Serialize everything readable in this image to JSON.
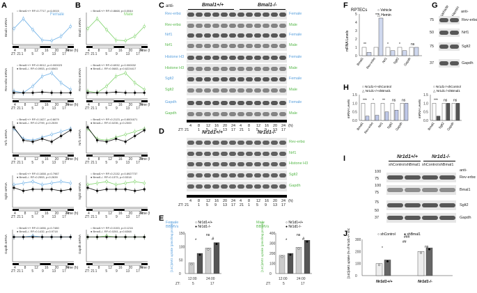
{
  "panels": {
    "A": {
      "label": "A",
      "sex": "Female",
      "wt": "Bmal1+/+",
      "ko": "Bmal1-/-",
      "rows": [
        {
          "ylabel": "Bmal1 mRNA",
          "stats1": "RF=0.7717, p=0.0015",
          "stats2": "",
          "wt": [
            1.2,
            2.1,
            1.1,
            0.15,
            0.1,
            0.5,
            1.4
          ],
          "ko": []
        },
        {
          "ylabel": "Rev-erbα mRNA",
          "stats1": "RF=0.9012, p=0.000023",
          "stats2": "RF=0.0953, p=0.6563",
          "wt": [
            0.15,
            0.1,
            0.3,
            0.6,
            0.7,
            0.4,
            0.2
          ],
          "ko": [
            0.1,
            0.1,
            0.1,
            0.12,
            0.1,
            0.1,
            0.1
          ]
        },
        {
          "ylabel": "Nrf1 mRNA",
          "stats1": "RF=0.1627, p=0.6679",
          "stats2": "RF=0.2799, p=0.2539",
          "wt": [
            1.5,
            0.8,
            0.7,
            0.9,
            1.1,
            1.3,
            1.5
          ],
          "ko": [
            1.6,
            0.7,
            0.6,
            0.8,
            0.6,
            1.0,
            1.4
          ]
        },
        {
          "ylabel": "Sglt2 mRNA",
          "stats1": "RF=0.1658, p=0.7987",
          "stats2": "RF=0.2553, p=0.2639",
          "wt": [
            1.3,
            1.4,
            1.5,
            1.3,
            1.4,
            1.5,
            1.4
          ],
          "ko": [
            1.1,
            0.9,
            1.0,
            1.0,
            1.0,
            0.9,
            1.0
          ]
        },
        {
          "ylabel": "Gapdh mRNA",
          "stats1": "RF=0.1656, p=0.7480",
          "stats2": "RF=0.1432, p=0.9718",
          "wt": [
            1.0,
            1.0,
            1.05,
            1.0,
            1.0,
            1.0,
            1.0
          ],
          "ko": [
            1.0,
            1.0,
            1.0,
            1.0,
            1.0,
            1.0,
            1.0
          ]
        }
      ]
    },
    "B": {
      "label": "B",
      "sex": "Male",
      "wt": "Bmal1+/+",
      "ko": "Bmal1-/-",
      "rows": [
        {
          "ylabel": "Bmal1 mRNA",
          "stats1": "RF=0.8668, p=0.0044",
          "stats2": ""
        },
        {
          "ylabel": "Rev-erbα mRNA",
          "stats1": "RF=0.6932, p=0.000032",
          "stats2": "RF=0.0683, p=0.6224417"
        },
        {
          "ylabel": "Nrf1 mRNA",
          "stats1": "RF=0.2123, p=0.8001671",
          "stats2": "RF=0.0235, p=0.2300"
        },
        {
          "ylabel": "Sglt2 mRNA",
          "stats1": "RF=0.2132, p=0.8927737",
          "stats2": "RF=0.1373, p=0.5318"
        },
        {
          "ylabel": "Gapdh mRNA",
          "stats1": "RF=0.0153, p=0.1216",
          "stats2": "RF=0.0261, p=0.6368"
        }
      ]
    },
    "time_axis": {
      "ticks": [
        "4",
        "8",
        "12",
        "16",
        "20",
        "24"
      ],
      "zt": [
        "ZT: 21",
        "1",
        "5",
        "9",
        "13",
        "17"
      ],
      "unit": "Time (h)"
    },
    "C": {
      "label": "C",
      "anti": "anti-",
      "geno1": "Bmal1+/+",
      "geno2": "Bmal1-/-",
      "bands": [
        {
          "name": "Rev-erbα",
          "sex": "Female"
        },
        {
          "name": "Rev-erbα",
          "sex": "Male"
        },
        {
          "name": "Nrf1",
          "sex": "Female"
        },
        {
          "name": "Nrf1",
          "sex": "Male"
        },
        {
          "name": "Histone H3",
          "sex": "Female"
        },
        {
          "name": "Histone H3",
          "sex": "Male"
        },
        {
          "name": "Sglt2",
          "sex": "Female"
        },
        {
          "name": "Sglt2",
          "sex": "Male"
        },
        {
          "name": "Gapdh",
          "sex": "Female"
        },
        {
          "name": "Gapdh",
          "sex": "Male"
        }
      ],
      "time": [
        "4",
        "8",
        "12",
        "16",
        "20",
        "24",
        "4",
        "8",
        "12",
        "16",
        "20",
        "24"
      ],
      "zt": [
        "ZT: 21",
        "1",
        "5",
        "9",
        "13",
        "17",
        "21",
        "1",
        "5",
        "9",
        "13",
        "17"
      ],
      "unit": "(h)"
    },
    "D": {
      "label": "D",
      "geno1": "Nr1d1+/+",
      "geno2": "Nr1d1-/-",
      "bands": [
        "Rev-erbα",
        "Nrf1",
        "Histone H3",
        "Sglt2",
        "Gapdh"
      ],
      "time": [
        "4",
        "8",
        "12",
        "16",
        "20",
        "24",
        "4",
        "8",
        "12",
        "16",
        "20",
        "24"
      ],
      "zt": [
        "ZT: 21",
        "1",
        "5",
        "9",
        "13",
        "17",
        "21",
        "1",
        "5",
        "9",
        "13",
        "17"
      ],
      "unit": "(h)"
    },
    "E": {
      "label": "E",
      "female": "Female",
      "male": "Male",
      "cells": "BBMVs",
      "wt": "Nr1d1+/+",
      "ko": "Nr1d1-/-",
      "ylabel": "[14C]αMG uptake (pmol/mg protein)",
      "x1": "12:00",
      "x2": "24:00",
      "zt1": "5",
      "zt2": "17",
      "ztprefix": "ZT:",
      "f_yticks": [
        "0",
        "50",
        "100",
        "150"
      ],
      "m_yticks": [
        "0",
        "100",
        "200",
        "300",
        "400"
      ],
      "sig1": "*",
      "sig2": "#",
      "sig3": "ns",
      "sig4": "**"
    },
    "F": {
      "label": "F",
      "title": "RPTECs",
      "vehicle": "Vehicle",
      "hemin": "Hemin",
      "ylabel": "mRNA Levels",
      "genes": [
        "Bmal1",
        "Rev-erbα",
        "Nrf1",
        "Sglt2",
        "Gapdh"
      ],
      "yticks": [
        "0",
        "1",
        "2",
        "3",
        "4",
        "5"
      ],
      "vehicle_vals": [
        1,
        1,
        1,
        1,
        1
      ],
      "hemin_vals": [
        0.4,
        4.5,
        0.6,
        0.6,
        1.0
      ],
      "sig": [
        "**",
        "***",
        "*",
        "*",
        "ns"
      ]
    },
    "G": {
      "label": "G",
      "lanes": [
        "Vehicle",
        "Hemin"
      ],
      "anti": "anti-",
      "bands": [
        "Rev-erbα",
        "Nrf1",
        "Sglt2",
        "Gapdh"
      ],
      "mw": [
        "75",
        "50",
        "75",
        "37"
      ]
    },
    "H": {
      "label": "H",
      "ylabel": "mRNA Levels",
      "left": {
        "a": "Nr1d1+/+shControl",
        "b": "Nr1d1+/+shBmal1",
        "genes": [
          "Bmal1",
          "Rev-erbα",
          "Nrf1",
          "Sglt2",
          "Gapdh"
        ],
        "yticks": [
          "0.0",
          "0.5",
          "1.0",
          "1.5"
        ],
        "sig": [
          "***",
          "*",
          "**",
          "ns",
          "ns"
        ]
      },
      "right": {
        "a": "Nr1d1-/-shControl",
        "b": "Nr1d1-/-shBmal1",
        "genes": [
          "Bmal1",
          "Sglt2",
          "Gapdh"
        ],
        "yticks": [
          "0.0",
          "0.5",
          "1.0",
          "1.5"
        ],
        "sig": [
          "***",
          "ns",
          "ns"
        ]
      }
    },
    "I": {
      "label": "I",
      "geno1": "Nr1d1+/+",
      "geno2": "Nr1d1-/-",
      "lanes": [
        "shControl",
        "shBmal1",
        "shControl",
        "shBmal1"
      ],
      "anti": "anti-",
      "bands": [
        "Rev-erbα",
        "Bmal1",
        "Sglt2",
        "Gapdh"
      ],
      "mw": [
        "100",
        "75",
        "100",
        "75",
        "75",
        "50",
        "37"
      ]
    },
    "J": {
      "label": "J",
      "legend_a": "shControl",
      "legend_b": "shBmal1",
      "ylabel": "[14C]αMG uptake (% of Nr1d1+/+ shControl)",
      "groups": [
        "Nr1d1+/+",
        "Nr1d1-/-"
      ],
      "yticks": [
        "0",
        "100",
        "200",
        "300"
      ],
      "sig": [
        "*",
        "###",
        "##",
        "ns"
      ]
    }
  },
  "chart_data": [
    {
      "type": "bar",
      "title": "RPTECs",
      "categories": [
        "Bmal1",
        "Rev-erbα",
        "Nrf1",
        "Sglt2",
        "Gapdh"
      ],
      "series": [
        {
          "name": "Vehicle",
          "values": [
            1,
            1,
            1,
            1,
            1
          ]
        },
        {
          "name": "Hemin",
          "values": [
            0.4,
            4.5,
            0.6,
            0.6,
            1.0
          ]
        }
      ],
      "ylabel": "mRNA Levels",
      "ylim": [
        0,
        5
      ]
    },
    {
      "type": "bar",
      "categories": [
        "Bmal1",
        "Rev-erbα",
        "Nrf1",
        "Sglt2",
        "Gapdh"
      ],
      "series": [
        {
          "name": "Nr1d1+/+shControl",
          "values": [
            1,
            1,
            1,
            1,
            1
          ]
        },
        {
          "name": "Nr1d1+/+shBmal1",
          "values": [
            0.25,
            0.3,
            0.5,
            0.6,
            1.0
          ]
        }
      ],
      "ylabel": "mRNA Levels",
      "ylim": [
        0,
        1.5
      ]
    },
    {
      "type": "bar",
      "categories": [
        "Bmal1",
        "Sglt2",
        "Gapdh"
      ],
      "series": [
        {
          "name": "Nr1d1-/-shControl",
          "values": [
            1,
            1,
            1
          ]
        },
        {
          "name": "Nr1d1-/-shBmal1",
          "values": [
            0.25,
            1.0,
            1.0
          ]
        }
      ],
      "ylabel": "mRNA Levels",
      "ylim": [
        0,
        1.5
      ]
    }
  ]
}
